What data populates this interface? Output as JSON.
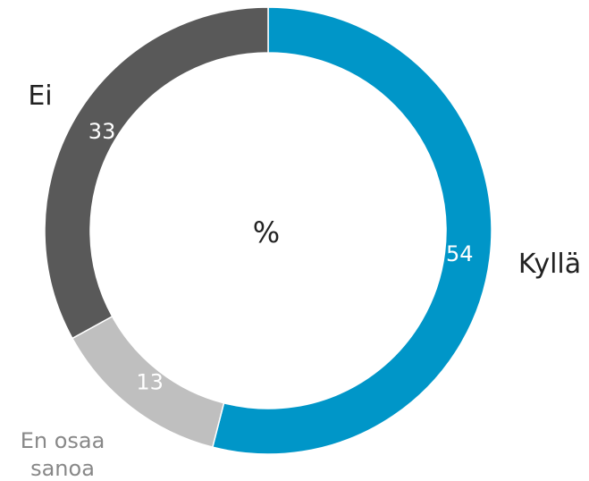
{
  "chart_data": {
    "type": "donut",
    "center_label": "%",
    "categories": [
      "Kyllä",
      "En osaa sanoa",
      "Ei"
    ],
    "values": [
      54,
      13,
      33
    ],
    "colors": [
      "#0096c8",
      "#bfbfbf",
      "#595959"
    ]
  }
}
